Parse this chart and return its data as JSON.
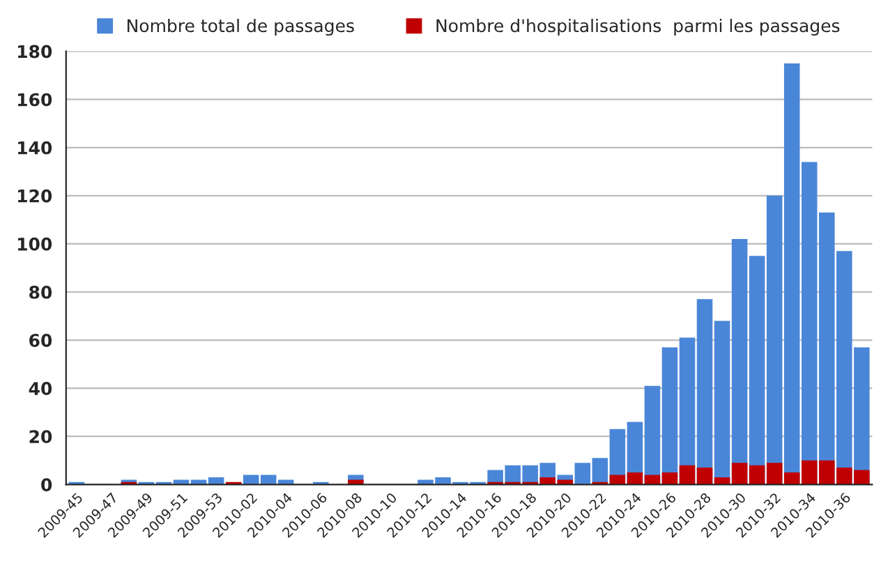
{
  "chart_data": {
    "type": "bar",
    "categories": [
      "2009-45",
      null,
      "2009-47",
      null,
      "2009-49",
      null,
      "2009-51",
      null,
      "2009-53",
      null,
      "2010-02",
      null,
      "2010-04",
      null,
      "2010-06",
      null,
      "2010-08",
      null,
      "2010-10",
      null,
      "2010-12",
      null,
      "2010-14",
      null,
      "2010-16",
      null,
      "2010-18",
      null,
      "2010-20",
      null,
      "2010-22",
      null,
      "2010-24",
      null,
      "2010-26",
      null,
      "2010-28",
      null,
      "2010-30",
      null,
      "2010-32",
      null,
      "2010-34",
      null,
      "2010-36",
      null
    ],
    "series": [
      {
        "name": "Nombre total de passages",
        "color": "#4a86d8",
        "values": [
          1,
          0,
          0,
          2,
          1,
          1,
          2,
          2,
          3,
          null,
          4,
          4,
          2,
          0,
          1,
          0,
          4,
          0,
          0,
          0,
          2,
          3,
          1,
          1,
          6,
          8,
          8,
          9,
          4,
          9,
          11,
          23,
          26,
          41,
          57,
          61,
          77,
          68,
          102,
          95,
          120,
          175,
          134,
          113,
          97,
          57
        ]
      },
      {
        "name": "Nombre d'hospitalisations  parmi les passages",
        "color": "#c00000",
        "values": [
          0,
          0,
          0,
          1,
          0,
          0,
          0,
          0,
          0,
          1,
          0,
          0,
          0,
          0,
          0,
          0,
          2,
          0,
          0,
          0,
          0,
          0,
          0,
          0,
          1,
          1,
          1,
          3,
          2,
          0,
          1,
          4,
          5,
          4,
          5,
          8,
          7,
          3,
          9,
          8,
          9,
          5,
          10,
          10,
          7,
          6
        ]
      }
    ],
    "ylim": [
      0,
      180
    ],
    "yticks": [
      0,
      20,
      40,
      60,
      80,
      100,
      120,
      140,
      160,
      180
    ],
    "grid": "y",
    "legend": "top"
  }
}
